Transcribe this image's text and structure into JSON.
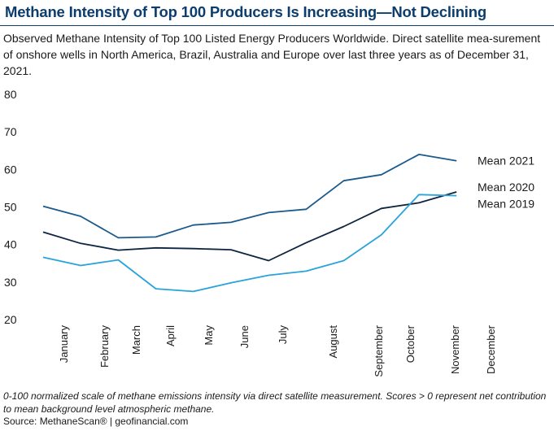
{
  "header": {
    "title": "Methane Intensity of Top 100 Producers Is Increasing—Not Declining",
    "subtitle": "Observed Methane Intensity of Top 100 Listed Energy Producers Worldwide. Direct satellite mea-surement of onshore wells in North America, Brazil, Australia and Europe over last three years as of December 31, 2021."
  },
  "footer": {
    "footnote": "0-100 normalized scale of methane emissions intensity via direct satellite measurement. Scores > 0 represent net contribution to mean background level atmospheric methane.",
    "source": "Source: MethaneScan® | geofinancial.com"
  },
  "chart_data": {
    "type": "line",
    "title": "Methane Intensity of Top 100 Producers Is Increasing—Not Declining",
    "xlabel": "",
    "ylabel": "",
    "ylim": [
      20,
      80
    ],
    "yticks": [
      20,
      30,
      40,
      50,
      60,
      70,
      80
    ],
    "grid": false,
    "legend": "inline-right",
    "categories": [
      "January",
      "February",
      "March",
      "April",
      "May",
      "June",
      "July",
      "August",
      "September",
      "October",
      "November",
      "December"
    ],
    "x_points": [
      0,
      1,
      2,
      3,
      4,
      5,
      6,
      7,
      8,
      9,
      10,
      11
    ],
    "series": [
      {
        "name": "Mean 2021",
        "color": "#1b5a8c",
        "values": [
          50.2,
          47.5,
          41.8,
          42.0,
          45.2,
          45.9,
          48.5,
          49.4,
          57.0,
          58.6,
          64.0,
          62.3
        ]
      },
      {
        "name": "Mean 2020",
        "color": "#0d2540",
        "values": [
          43.3,
          40.3,
          38.5,
          39.1,
          38.9,
          38.6,
          35.7,
          40.5,
          44.8,
          49.6,
          51.1,
          54.0
        ]
      },
      {
        "name": "Mean 2019",
        "color": "#28a3dc",
        "values": [
          36.6,
          34.4,
          35.9,
          28.2,
          27.5,
          29.8,
          31.8,
          32.9,
          35.7,
          42.6,
          53.3,
          53.0
        ]
      }
    ]
  }
}
